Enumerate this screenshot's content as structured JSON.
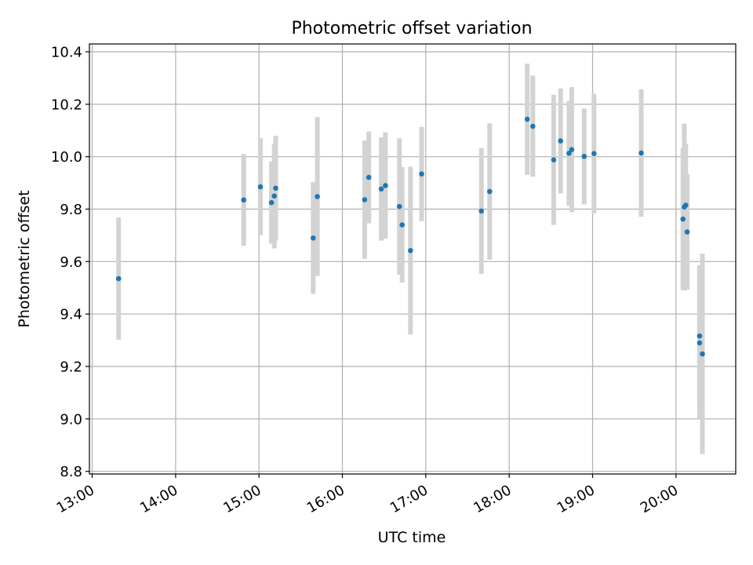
{
  "chart_data": {
    "type": "scatter",
    "title": "Photometric offset variation",
    "xlabel": "UTC time",
    "ylabel": "Photometric offset",
    "x_axis_type": "time",
    "x_ticks": [
      "13:00",
      "14:00",
      "15:00",
      "16:00",
      "17:00",
      "18:00",
      "19:00",
      "20:00"
    ],
    "y_ticks": [
      "8.8",
      "9.0",
      "9.2",
      "9.4",
      "9.6",
      "9.8",
      "10.0",
      "10.2",
      "10.4"
    ],
    "xlim": [
      "12:58",
      "20:43"
    ],
    "ylim": [
      8.79,
      10.43
    ],
    "grid": true,
    "x_tick_labels_rotated": true,
    "marker_color": "#1f77b4",
    "errorbar_color": "#d3d3d3",
    "points": [
      {
        "t": "13:19",
        "y": 9.535,
        "err": 0.233
      },
      {
        "t": "14:49",
        "y": 9.835,
        "err": 0.175
      },
      {
        "t": "15:01",
        "y": 9.885,
        "err": 0.185
      },
      {
        "t": "15:09",
        "y": 9.825,
        "err": 0.157
      },
      {
        "t": "15:11",
        "y": 9.85,
        "err": 0.2
      },
      {
        "t": "15:12",
        "y": 9.88,
        "err": 0.2
      },
      {
        "t": "15:39",
        "y": 9.69,
        "err": 0.213
      },
      {
        "t": "15:42",
        "y": 9.848,
        "err": 0.303
      },
      {
        "t": "16:16",
        "y": 9.836,
        "err": 0.225
      },
      {
        "t": "16:19",
        "y": 9.921,
        "err": 0.175
      },
      {
        "t": "16:28",
        "y": 9.877,
        "err": 0.197
      },
      {
        "t": "16:31",
        "y": 9.89,
        "err": 0.203
      },
      {
        "t": "16:41",
        "y": 9.81,
        "err": 0.26
      },
      {
        "t": "16:43",
        "y": 9.74,
        "err": 0.22
      },
      {
        "t": "16:49",
        "y": 9.642,
        "err": 0.32
      },
      {
        "t": "16:57",
        "y": 9.934,
        "err": 0.18
      },
      {
        "t": "17:40",
        "y": 9.793,
        "err": 0.24
      },
      {
        "t": "17:46",
        "y": 9.867,
        "err": 0.26
      },
      {
        "t": "18:13",
        "y": 10.143,
        "err": 0.212
      },
      {
        "t": "18:17",
        "y": 10.116,
        "err": 0.193
      },
      {
        "t": "18:32",
        "y": 9.988,
        "err": 0.248
      },
      {
        "t": "18:37",
        "y": 10.06,
        "err": 0.2
      },
      {
        "t": "18:43",
        "y": 10.013,
        "err": 0.2
      },
      {
        "t": "18:45",
        "y": 10.027,
        "err": 0.238
      },
      {
        "t": "18:54",
        "y": 10.001,
        "err": 0.183
      },
      {
        "t": "19:01",
        "y": 10.012,
        "err": 0.228
      },
      {
        "t": "19:35",
        "y": 10.014,
        "err": 0.243
      },
      {
        "t": "20:05",
        "y": 9.762,
        "err": 0.27
      },
      {
        "t": "20:06",
        "y": 9.808,
        "err": 0.318
      },
      {
        "t": "20:07",
        "y": 9.815,
        "err": 0.235
      },
      {
        "t": "20:08",
        "y": 9.713,
        "err": 0.22
      },
      {
        "t": "20:17",
        "y": 9.316,
        "err": 0.27
      },
      {
        "t": "20:17",
        "y": 9.29,
        "err": 0.29
      },
      {
        "t": "20:19",
        "y": 9.248,
        "err": 0.382
      }
    ]
  }
}
